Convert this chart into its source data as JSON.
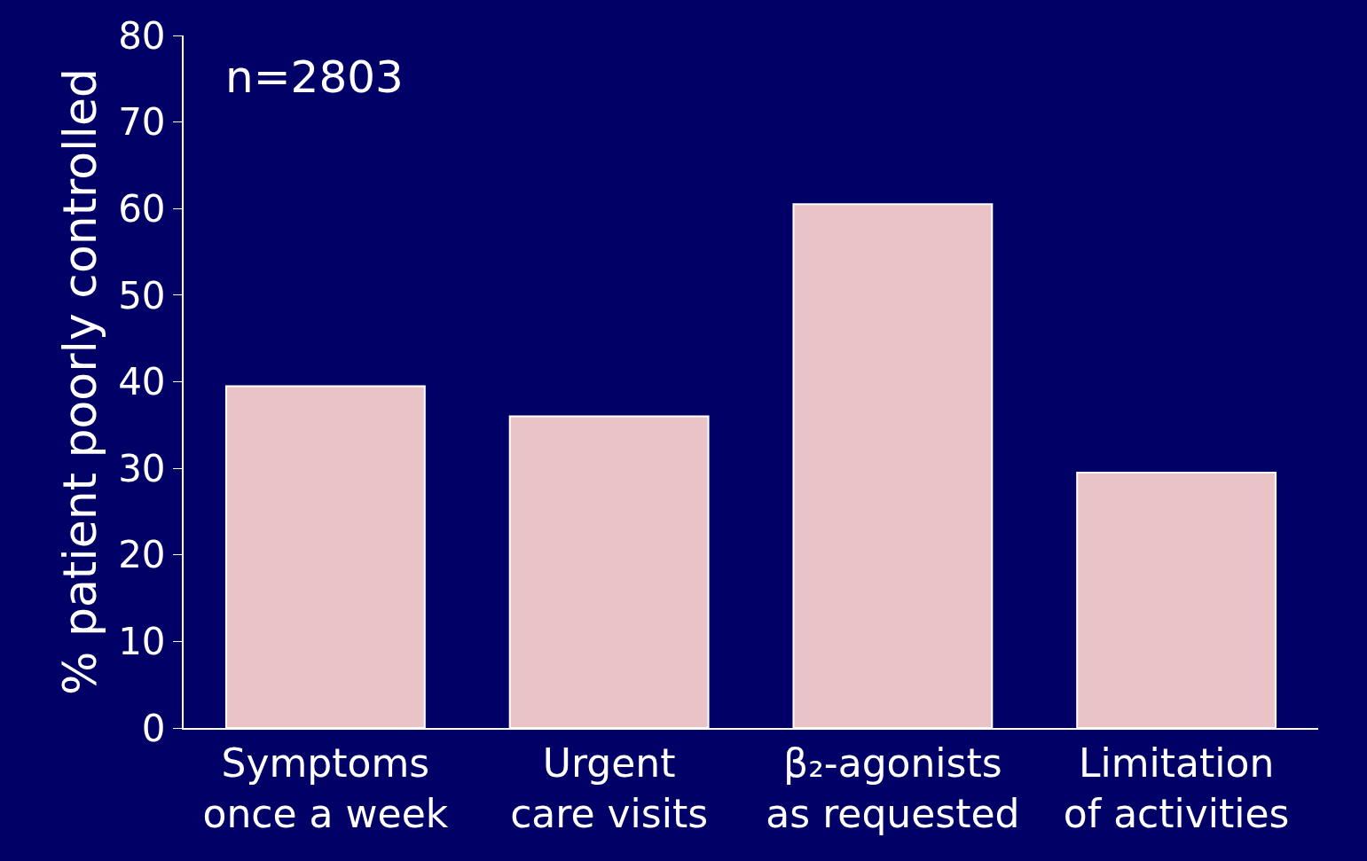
{
  "chart_data": {
    "type": "bar",
    "ylabel": "% patient poorly controlled",
    "categories": [
      "Symptoms\nonce a week",
      "Urgent\ncare visits",
      "β₂-agonists\nas requested",
      "Limitation\nof activities"
    ],
    "values": [
      39.5,
      36,
      60.5,
      29.5
    ],
    "color": "#e9c3c5",
    "ylim": [
      0,
      80
    ],
    "yticks": [
      0,
      10,
      20,
      30,
      40,
      50,
      60,
      70,
      80
    ],
    "grid": false,
    "annotations": [
      "n=2803"
    ]
  }
}
